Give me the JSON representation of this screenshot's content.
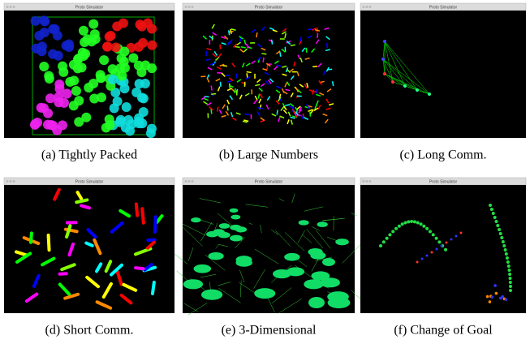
{
  "panels": [
    {
      "window_title": "Proto Simulator",
      "caption": "(a) Tightly Packed"
    },
    {
      "window_title": "Proto Simulator",
      "caption": "(b) Large Numbers"
    },
    {
      "window_title": "Proto Simulator",
      "caption": "(c) Long Comm."
    },
    {
      "window_title": "Proto Simulator",
      "caption": "(d) Short Comm."
    },
    {
      "window_title": "Proto Simulator",
      "caption": "(e) 3-Dimensional"
    },
    {
      "window_title": "Proto Simulator",
      "caption": "(f) Change of Goal"
    }
  ]
}
